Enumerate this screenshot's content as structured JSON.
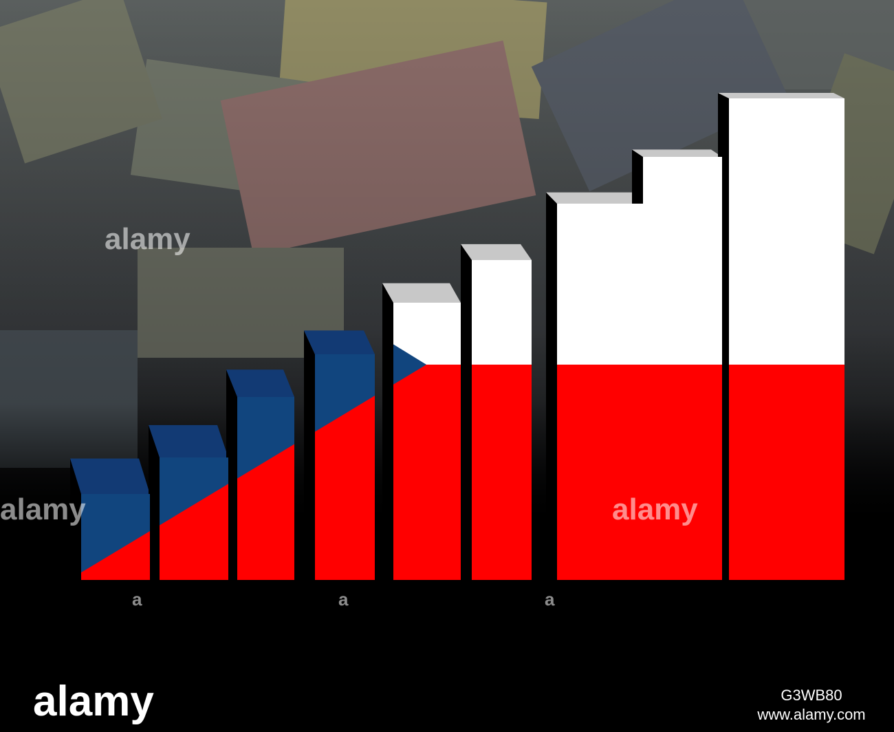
{
  "watermarks": [
    "alamy",
    "alamy",
    "alamy",
    "a",
    "a",
    "a"
  ],
  "footer": {
    "logo": "alamy",
    "image_id": "G3WB80",
    "url": "www.alamy.com"
  }
}
